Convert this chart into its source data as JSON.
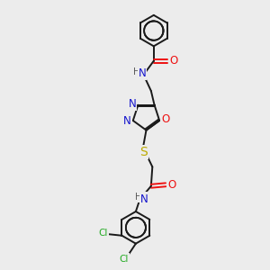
{
  "bg_color": "#ececec",
  "bond_color": "#1a1a1a",
  "n_color": "#1414cc",
  "o_color": "#ee1111",
  "s_color": "#bbaa00",
  "cl_color": "#22aa22",
  "h_color": "#555555",
  "font_size": 8.5,
  "small_font": 7.5,
  "line_width": 1.4,
  "figsize": [
    3.0,
    3.0
  ],
  "dpi": 100,
  "xlim": [
    0,
    10
  ],
  "ylim": [
    0,
    10
  ]
}
